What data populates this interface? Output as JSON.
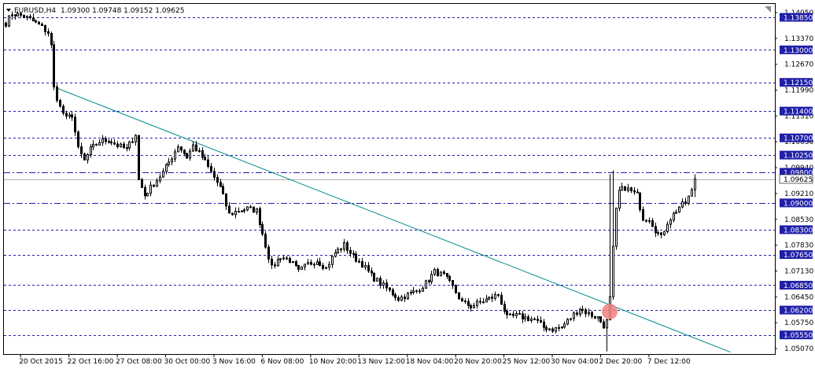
{
  "header": {
    "symbol": "EURUSD,H4",
    "ohlc": "1.09300 1.09748 1.09152 1.09625",
    "menu_icon": "triangle-down-icon",
    "corner_icon": "chart-corner-icon"
  },
  "colors": {
    "background": "#ffffff",
    "frame": "#000000",
    "level_line": "#1f1fa8",
    "level_label_bg": "#1f1fa8",
    "price_line": "#b0b0b0",
    "price_label_bg": "#ffffff",
    "trendline": "#008b8b",
    "marker": "#f08080",
    "candle": "#000000"
  },
  "chart_data": {
    "type": "candlestick",
    "y_range": [
      1.0505,
      1.142
    ],
    "x_range": [
      0,
      250
    ],
    "y_ticks": [
      "1.14050",
      "1.13370",
      "1.12670",
      "1.11990",
      "1.11310",
      "1.10630",
      "1.09940",
      "1.09210",
      "1.08530",
      "1.07830",
      "1.07130",
      "1.06450",
      "1.05750",
      "1.05070"
    ],
    "x_ticks": [
      {
        "label": "20 Oct 2015",
        "x": 5
      },
      {
        "label": "22 Oct 16:00",
        "x": 21
      },
      {
        "label": "27 Oct 08:00",
        "x": 37
      },
      {
        "label": "30 Oct 00:00",
        "x": 53
      },
      {
        "label": "3 Nov 16:00",
        "x": 69
      },
      {
        "label": "6 Nov 08:00",
        "x": 85
      },
      {
        "label": "10 Nov 20:00",
        "x": 101
      },
      {
        "label": "13 Nov 12:00",
        "x": 117
      },
      {
        "label": "18 Nov 04:00",
        "x": 133
      },
      {
        "label": "20 Nov 20:00",
        "x": 149
      },
      {
        "label": "25 Nov 12:00",
        "x": 165
      },
      {
        "label": "30 Nov 04:00",
        "x": 181
      },
      {
        "label": "2 Dec 20:00",
        "x": 197
      },
      {
        "label": "7 Dec 12:00",
        "x": 213
      }
    ],
    "levels": [
      {
        "price": 1.1385,
        "label": "1.13850",
        "style": "dashed"
      },
      {
        "price": 1.13,
        "label": "1.13000",
        "style": "dashed"
      },
      {
        "price": 1.1215,
        "label": "1.12150",
        "style": "dashed"
      },
      {
        "price": 1.114,
        "label": "1.11400",
        "style": "dashed"
      },
      {
        "price": 1.107,
        "label": "1.10700",
        "style": "dashed"
      },
      {
        "price": 1.1025,
        "label": "1.10250",
        "style": "dashed"
      },
      {
        "price": 1.098,
        "label": "1.09800",
        "style": "dashdot"
      },
      {
        "price": 1.09,
        "label": "1.09000",
        "style": "dashdot"
      },
      {
        "price": 1.083,
        "label": "1.08300",
        "style": "dashed"
      },
      {
        "price": 1.0765,
        "label": "1.07650",
        "style": "dashed"
      },
      {
        "price": 1.0685,
        "label": "1.06850",
        "style": "dashed"
      },
      {
        "price": 1.062,
        "label": "1.06200",
        "style": "dashed"
      },
      {
        "price": 1.0555,
        "label": "1.05550",
        "style": "dashed"
      }
    ],
    "current_price": {
      "price": 1.09625,
      "label": "1.09625"
    },
    "trendline": {
      "x1": 17,
      "y1": 1.12,
      "x2": 240,
      "y2": 1.051
    },
    "marker": {
      "x": 200,
      "price": 1.0616
    },
    "anchors": [
      [
        0,
        1.137
      ],
      [
        2,
        1.1395
      ],
      [
        5,
        1.139
      ],
      [
        8,
        1.138
      ],
      [
        11,
        1.1365
      ],
      [
        14,
        1.1345
      ],
      [
        15,
        1.131
      ],
      [
        16,
        1.12
      ],
      [
        18,
        1.115
      ],
      [
        20,
        1.112
      ],
      [
        22,
        1.113
      ],
      [
        24,
        1.104
      ],
      [
        26,
        1.101
      ],
      [
        28,
        1.104
      ],
      [
        31,
        1.106
      ],
      [
        34,
        1.1065
      ],
      [
        37,
        1.105
      ],
      [
        40,
        1.104
      ],
      [
        43,
        1.108
      ],
      [
        44,
        1.096
      ],
      [
        46,
        1.092
      ],
      [
        49,
        1.095
      ],
      [
        52,
        1.098
      ],
      [
        55,
        1.102
      ],
      [
        57,
        1.105
      ],
      [
        60,
        1.102
      ],
      [
        62,
        1.105
      ],
      [
        65,
        1.102
      ],
      [
        68,
        1.098
      ],
      [
        71,
        1.094
      ],
      [
        74,
        1.087
      ],
      [
        77,
        1.088
      ],
      [
        80,
        1.0885
      ],
      [
        83,
        1.088
      ],
      [
        86,
        1.079
      ],
      [
        88,
        1.073
      ],
      [
        91,
        1.076
      ],
      [
        94,
        1.075
      ],
      [
        97,
        1.072
      ],
      [
        100,
        1.074
      ],
      [
        103,
        1.075
      ],
      [
        106,
        1.073
      ],
      [
        109,
        1.077
      ],
      [
        112,
        1.079
      ],
      [
        115,
        1.076
      ],
      [
        118,
        1.074
      ],
      [
        121,
        1.071
      ],
      [
        124,
        1.069
      ],
      [
        127,
        1.067
      ],
      [
        130,
        1.065
      ],
      [
        133,
        1.066
      ],
      [
        136,
        1.067
      ],
      [
        139,
        1.069
      ],
      [
        142,
        1.072
      ],
      [
        145,
        1.071
      ],
      [
        148,
        1.068
      ],
      [
        151,
        1.064
      ],
      [
        154,
        1.063
      ],
      [
        157,
        1.064
      ],
      [
        160,
        1.065
      ],
      [
        163,
        1.066
      ],
      [
        166,
        1.06
      ],
      [
        169,
        1.0605
      ],
      [
        172,
        1.06
      ],
      [
        175,
        1.0595
      ],
      [
        178,
        1.0575
      ],
      [
        181,
        1.057
      ],
      [
        184,
        1.0575
      ],
      [
        187,
        1.06
      ],
      [
        190,
        1.0625
      ],
      [
        193,
        1.061
      ],
      [
        196,
        1.06
      ],
      [
        198,
        1.058
      ],
      [
        199,
        1.059
      ],
      [
        200,
        1.065
      ],
      [
        201,
        1.078
      ],
      [
        202,
        1.088
      ],
      [
        203,
        1.093
      ],
      [
        205,
        1.094
      ],
      [
        207,
        1.093
      ],
      [
        209,
        1.092
      ],
      [
        211,
        1.086
      ],
      [
        213,
        1.086
      ],
      [
        215,
        1.083
      ],
      [
        217,
        1.081
      ],
      [
        219,
        1.085
      ],
      [
        221,
        1.087
      ],
      [
        223,
        1.089
      ],
      [
        225,
        1.09
      ],
      [
        227,
        1.093
      ],
      [
        228,
        1.0962
      ]
    ]
  }
}
